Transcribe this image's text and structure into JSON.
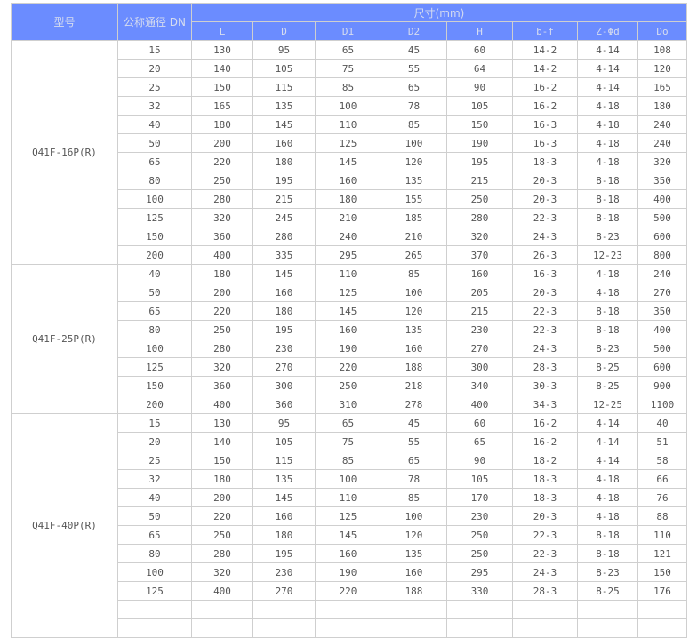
{
  "header": {
    "model": "型号",
    "dn": "公称通径 DN",
    "dims": "尺寸(mm)",
    "columns": [
      "L",
      "D",
      "D1",
      "D2",
      "H",
      "b-f",
      "Z-Φd",
      "Do"
    ]
  },
  "colors": {
    "header_bg": "#6b8cff",
    "border": "#cfcfcf"
  },
  "groups": [
    {
      "model": "Q41F-16P(R)",
      "rows": [
        [
          "15",
          "130",
          "95",
          "65",
          "45",
          "60",
          "14-2",
          "4-14",
          "108"
        ],
        [
          "20",
          "140",
          "105",
          "75",
          "55",
          "64",
          "14-2",
          "4-14",
          "120"
        ],
        [
          "25",
          "150",
          "115",
          "85",
          "65",
          "90",
          "16-2",
          "4-14",
          "165"
        ],
        [
          "32",
          "165",
          "135",
          "100",
          "78",
          "105",
          "16-2",
          "4-18",
          "180"
        ],
        [
          "40",
          "180",
          "145",
          "110",
          "85",
          "150",
          "16-3",
          "4-18",
          "240"
        ],
        [
          "50",
          "200",
          "160",
          "125",
          "100",
          "190",
          "16-3",
          "4-18",
          "240"
        ],
        [
          "65",
          "220",
          "180",
          "145",
          "120",
          "195",
          "18-3",
          "4-18",
          "320"
        ],
        [
          "80",
          "250",
          "195",
          "160",
          "135",
          "215",
          "20-3",
          "8-18",
          "350"
        ],
        [
          "100",
          "280",
          "215",
          "180",
          "155",
          "250",
          "20-3",
          "8-18",
          "400"
        ],
        [
          "125",
          "320",
          "245",
          "210",
          "185",
          "280",
          "22-3",
          "8-18",
          "500"
        ],
        [
          "150",
          "360",
          "280",
          "240",
          "210",
          "320",
          "24-3",
          "8-23",
          "600"
        ],
        [
          "200",
          "400",
          "335",
          "295",
          "265",
          "370",
          "26-3",
          "12-23",
          "800"
        ]
      ]
    },
    {
      "model": "Q41F-25P(R)",
      "rows": [
        [
          "40",
          "180",
          "145",
          "110",
          "85",
          "160",
          "16-3",
          "4-18",
          "240"
        ],
        [
          "50",
          "200",
          "160",
          "125",
          "100",
          "205",
          "20-3",
          "4-18",
          "270"
        ],
        [
          "65",
          "220",
          "180",
          "145",
          "120",
          "215",
          "22-3",
          "8-18",
          "350"
        ],
        [
          "80",
          "250",
          "195",
          "160",
          "135",
          "230",
          "22-3",
          "8-18",
          "400"
        ],
        [
          "100",
          "280",
          "230",
          "190",
          "160",
          "270",
          "24-3",
          "8-23",
          "500"
        ],
        [
          "125",
          "320",
          "270",
          "220",
          "188",
          "300",
          "28-3",
          "8-25",
          "600"
        ],
        [
          "150",
          "360",
          "300",
          "250",
          "218",
          "340",
          "30-3",
          "8-25",
          "900"
        ],
        [
          "200",
          "400",
          "360",
          "310",
          "278",
          "400",
          "34-3",
          "12-25",
          "1100"
        ]
      ]
    },
    {
      "model": "Q41F-40P(R)",
      "rows": [
        [
          "15",
          "130",
          "95",
          "65",
          "45",
          "60",
          "16-2",
          "4-14",
          "40"
        ],
        [
          "20",
          "140",
          "105",
          "75",
          "55",
          "65",
          "16-2",
          "4-14",
          "51"
        ],
        [
          "25",
          "150",
          "115",
          "85",
          "65",
          "90",
          "18-2",
          "4-14",
          "58"
        ],
        [
          "32",
          "180",
          "135",
          "100",
          "78",
          "105",
          "18-3",
          "4-18",
          "66"
        ],
        [
          "40",
          "200",
          "145",
          "110",
          "85",
          "170",
          "18-3",
          "4-18",
          "76"
        ],
        [
          "50",
          "220",
          "160",
          "125",
          "100",
          "230",
          "20-3",
          "4-18",
          "88"
        ],
        [
          "65",
          "250",
          "180",
          "145",
          "120",
          "250",
          "22-3",
          "8-18",
          "110"
        ],
        [
          "80",
          "280",
          "195",
          "160",
          "135",
          "250",
          "22-3",
          "8-18",
          "121"
        ],
        [
          "100",
          "320",
          "230",
          "190",
          "160",
          "295",
          "24-3",
          "8-23",
          "150"
        ],
        [
          "125",
          "400",
          "270",
          "220",
          "188",
          "330",
          "28-3",
          "8-25",
          "176"
        ]
      ]
    }
  ]
}
